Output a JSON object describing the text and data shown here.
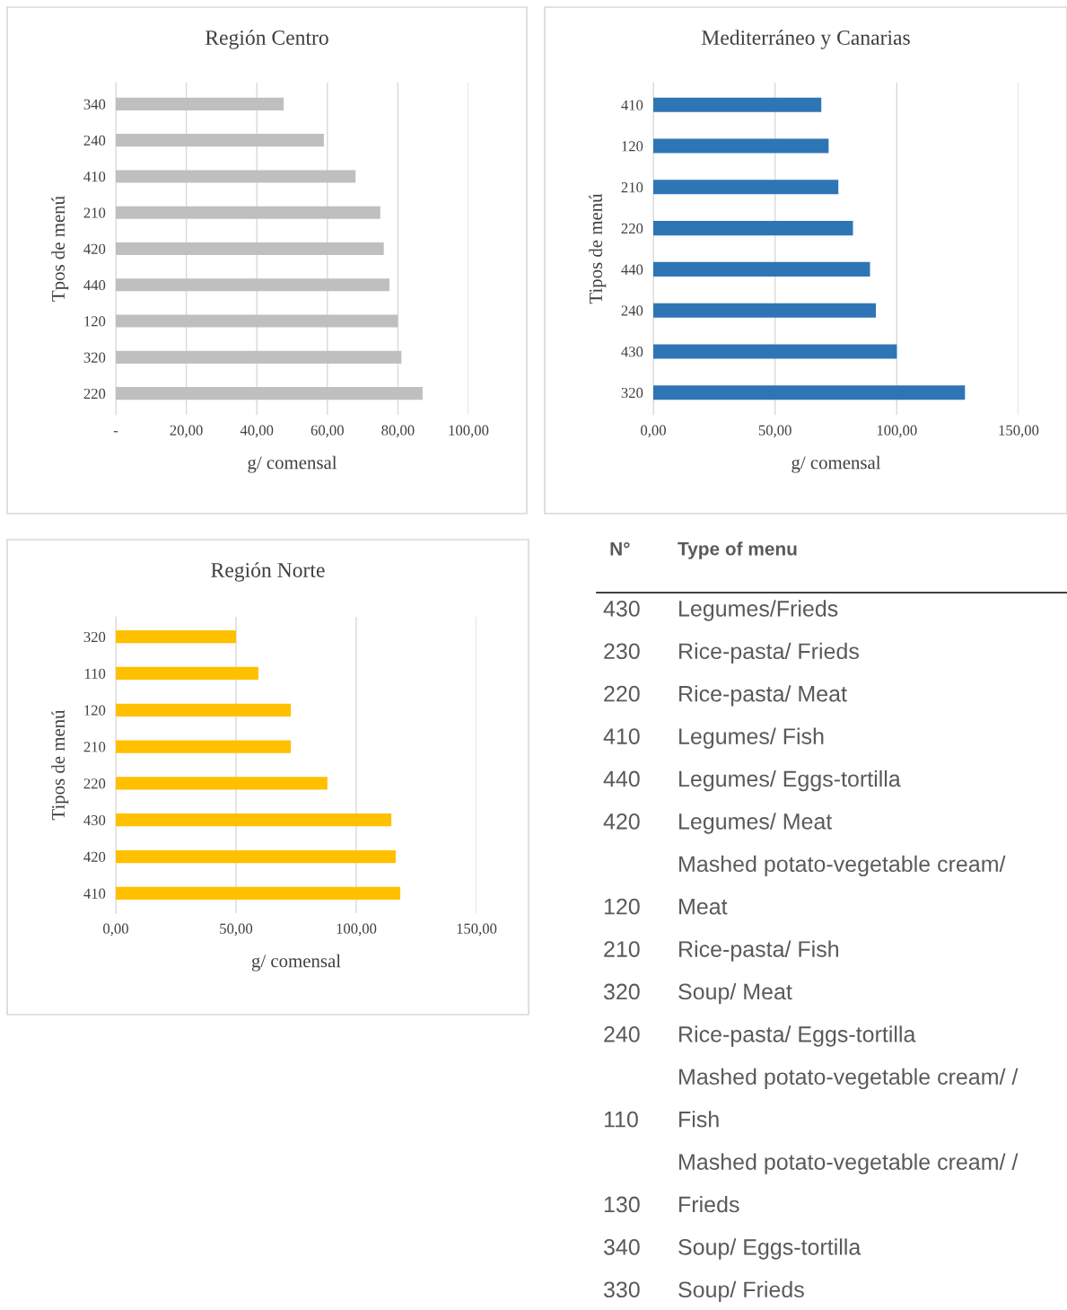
{
  "chart_data": [
    {
      "type": "bar",
      "orientation": "horizontal",
      "title": "Región Centro",
      "xlabel": "g/ comensal",
      "ylabel": "Tpos de menú",
      "categories": [
        "340",
        "240",
        "410",
        "210",
        "420",
        "440",
        "120",
        "320",
        "220"
      ],
      "values": [
        47.6,
        59,
        68,
        75,
        76,
        77.6,
        80,
        81,
        87
      ],
      "color": "#bfbfbf",
      "xlim": [
        0,
        100
      ],
      "xticks": [
        {
          "value": 0,
          "label": "-"
        },
        {
          "value": 20,
          "label": "20,00"
        },
        {
          "value": 40,
          "label": "40,00"
        },
        {
          "value": 60,
          "label": "60,00"
        },
        {
          "value": 80,
          "label": "80,00"
        },
        {
          "value": 100,
          "label": "100,00"
        }
      ],
      "grid": "x"
    },
    {
      "type": "bar",
      "orientation": "horizontal",
      "title": "Mediterráneo y Canarias",
      "xlabel": "g/ comensal",
      "ylabel": "Tipos de menú",
      "categories": [
        "410",
        "120",
        "210",
        "220",
        "440",
        "240",
        "430",
        "320"
      ],
      "values": [
        69,
        72,
        76,
        82,
        89,
        91.4,
        100,
        128
      ],
      "color": "#2e75b6",
      "xlim": [
        0,
        150
      ],
      "xticks": [
        {
          "value": 0,
          "label": "0,00"
        },
        {
          "value": 50,
          "label": "50,00"
        },
        {
          "value": 100,
          "label": "100,00"
        },
        {
          "value": 150,
          "label": "150,00"
        }
      ],
      "grid": "x"
    },
    {
      "type": "bar",
      "orientation": "horizontal",
      "title": "Región Norte",
      "xlabel": "g/ comensal",
      "ylabel": "Tipos de menú",
      "categories": [
        "320",
        "110",
        "120",
        "210",
        "220",
        "430",
        "420",
        "410"
      ],
      "values": [
        50,
        59.3,
        72.8,
        72.8,
        88,
        114.6,
        116.4,
        118.3
      ],
      "color": "#ffc000",
      "xlim": [
        0,
        150
      ],
      "xticks": [
        {
          "value": 0,
          "label": "0,00"
        },
        {
          "value": 50,
          "label": "50,00"
        },
        {
          "value": 100,
          "label": "100,00"
        },
        {
          "value": 150,
          "label": "150,00"
        }
      ],
      "grid": "x"
    },
    {
      "type": "other",
      "annotations": [
        "N°",
        "Type of menu",
        "430",
        "Legumes/Frieds",
        "230",
        "Rice-pasta/ Frieds",
        "220",
        "Rice-pasta/ Meat",
        "410",
        "Legumes/ Fish",
        "440",
        "Legumes/ Eggs-tortilla",
        "420",
        "Legumes/ Meat",
        "120",
        "Mashed potato-vegetable cream/\nMeat",
        "210",
        "Rice-pasta/ Fish",
        "320",
        "Soup/ Meat",
        "240",
        "Rice-pasta/ Eggs-tortilla",
        "110",
        "Mashed potato-vegetable cream/ /\nFish",
        "130",
        "Mashed potato-vegetable cream/ /\nFrieds",
        "340",
        "Soup/ Eggs-tortilla",
        "330",
        "Soup/ Frieds"
      ]
    }
  ]
}
